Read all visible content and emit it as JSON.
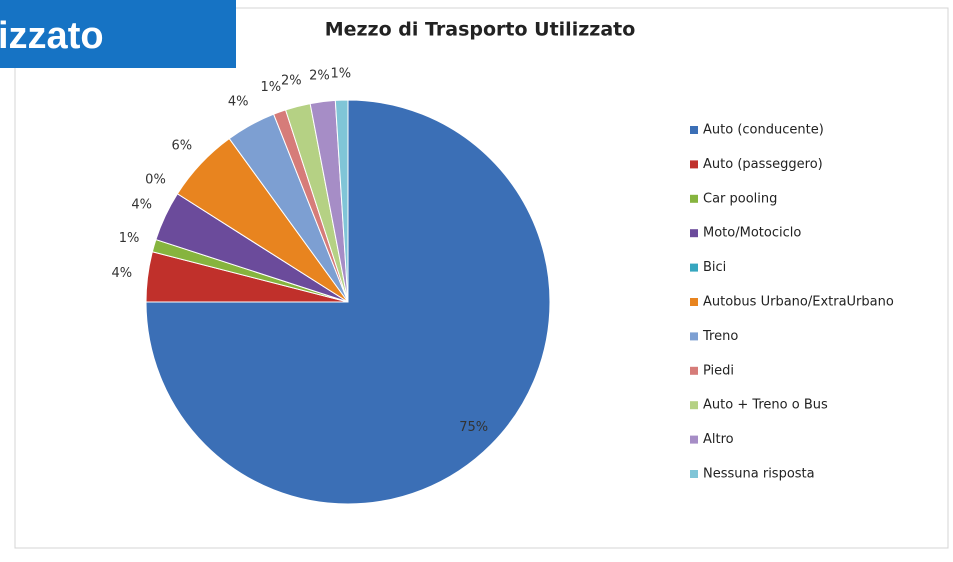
{
  "banner": "izzato",
  "chart_data": {
    "type": "pie",
    "title": "Mezzo di Trasporto Utilizzato",
    "categories": [
      "Auto (conducente)",
      "Auto (passeggero)",
      "Car pooling",
      "Moto/Motociclo",
      "Bici",
      "Autobus Urbano/ExtraUrbano",
      "Treno",
      "Piedi",
      "Auto + Treno o Bus",
      "Altro",
      "Nessuna risposta"
    ],
    "values": [
      75,
      4,
      1,
      4,
      0,
      6,
      4,
      1,
      2,
      2,
      1
    ],
    "value_labels": [
      "75%",
      "4%",
      "1%",
      "4%",
      "0%",
      "6%",
      "4%",
      "1%",
      "2%",
      "2%",
      "1%"
    ],
    "colors": [
      "#3b6fb6",
      "#c0302b",
      "#86b43e",
      "#6b4b9b",
      "#36a6bf",
      "#e8841f",
      "#7d9fd2",
      "#d67c79",
      "#b5d184",
      "#a68dc6",
      "#80c5d7"
    ],
    "legend": "right"
  }
}
